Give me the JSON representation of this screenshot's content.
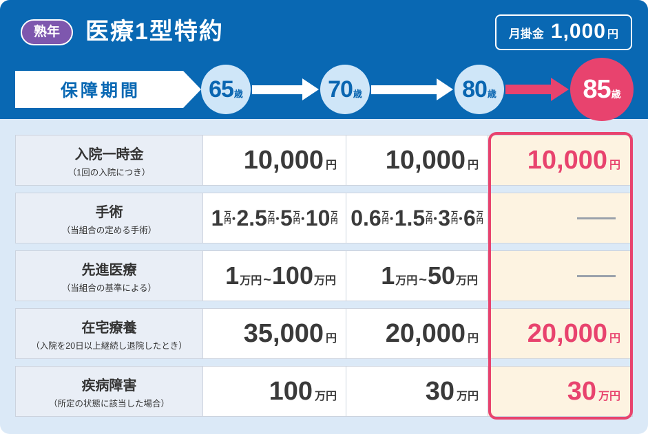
{
  "colors": {
    "header_blue": "#0968b3",
    "badge_purple": "#7e57ae",
    "accent_pink": "#e8436e",
    "circle_light_blue": "#cfe6f8",
    "page_light_blue": "#dbe9f7",
    "highlight_cream": "#fdf3e1",
    "label_cell_gray": "#e9eef6"
  },
  "units": {
    "dot": "・",
    "man": "万",
    "en": "円",
    "man_en": "万円",
    "yen": "円",
    "tilde": "~"
  },
  "header": {
    "badge": "熟年",
    "title": "医療1型特約",
    "fee_label": "月掛金",
    "fee_amount": "1,000",
    "fee_unit": "円",
    "period_label": "保障期間",
    "ages": [
      {
        "num": "65",
        "unit": "歳"
      },
      {
        "num": "70",
        "unit": "歳"
      },
      {
        "num": "80",
        "unit": "歳"
      },
      {
        "num": "85",
        "unit": "歳"
      }
    ]
  },
  "table": {
    "rows": [
      {
        "label": "入院一時金",
        "sublabel": "（1回の入院につき）",
        "col1": {
          "num": "10,000",
          "unit": "円"
        },
        "col2": {
          "num": "10,000",
          "unit": "円"
        },
        "col3": {
          "num": "10,000",
          "unit": "円"
        }
      },
      {
        "label": "手術",
        "sublabel": "（当組合の定める手術）",
        "col1": {
          "items": [
            "1",
            "2.5",
            "5",
            "10"
          ]
        },
        "col2": {
          "items": [
            "0.6",
            "1.5",
            "3",
            "6"
          ]
        },
        "col3": {
          "dash": "—"
        }
      },
      {
        "label": "先進医療",
        "sublabel": "（当組合の基準による）",
        "col1": {
          "min": "1",
          "max": "100"
        },
        "col2": {
          "min": "1",
          "max": "50"
        },
        "col3": {
          "dash": "—"
        }
      },
      {
        "label": "在宅療養",
        "sublabel": "（入院を20日以上継続し退院したとき）",
        "col1": {
          "num": "35,000",
          "unit": "円"
        },
        "col2": {
          "num": "20,000",
          "unit": "円"
        },
        "col3": {
          "num": "20,000",
          "unit": "円"
        }
      },
      {
        "label": "疾病障害",
        "sublabel": "（所定の状態に該当した場合）",
        "col1": {
          "num": "100",
          "unit": "万円"
        },
        "col2": {
          "num": "30",
          "unit": "万円"
        },
        "col3": {
          "num": "30",
          "unit": "万円"
        }
      }
    ]
  }
}
